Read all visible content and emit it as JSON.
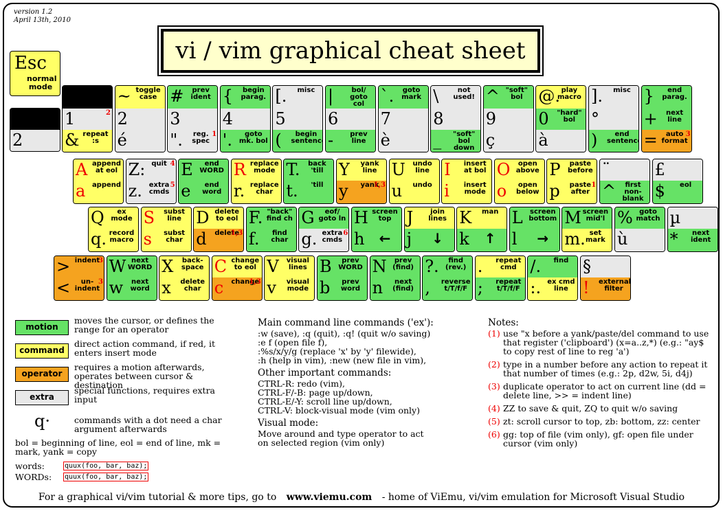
{
  "version": "version 1.2",
  "date": "April 13th, 2010",
  "title": "vi / vim graphical cheat sheet",
  "esc": {
    "key": "Esc",
    "desc": "normal mode"
  },
  "row1": [
    {
      "top": {
        "c": "",
        "d": "",
        "cl": "black"
      },
      "bot": {
        "c": "2",
        "d": "",
        "cl": "gray"
      }
    },
    {
      "top": {
        "c": "",
        "d": "",
        "cl": "black"
      },
      "bot": {
        "c": "1",
        "d": "",
        "cl": "gray",
        "s": "2"
      },
      "bot2": {
        "c": "&",
        "d": "repeat :s",
        "cl": "yellow"
      }
    },
    {
      "top": {
        "c": "~",
        "d": "toggle case",
        "cl": "yellow"
      },
      "bot": {
        "c": "2",
        "d": "",
        "cl": "gray"
      },
      "bot2": {
        "c": "é",
        "d": "",
        "cl": "gray"
      }
    },
    {
      "top": {
        "c": "#",
        "d": "prev ident",
        "cl": "green"
      },
      "bot": {
        "c": "3",
        "d": "",
        "cl": "gray"
      },
      "bot2": {
        "c": "\".",
        "d": "reg. spec",
        "cl": "gray",
        "s": "1"
      }
    },
    {
      "top": {
        "c": "{",
        "d": "begin parag.",
        "cl": "green"
      },
      "bot": {
        "c": "4",
        "d": "",
        "cl": "gray"
      },
      "bot2": {
        "c": "'.",
        "d": "goto mk. bol",
        "cl": "green"
      }
    },
    {
      "top": {
        "c": "[.",
        "d": "misc",
        "cl": "gray"
      },
      "bot": {
        "c": "5",
        "d": "",
        "cl": "gray"
      },
      "bot2": {
        "c": "(",
        "d": "begin sentence",
        "cl": "green"
      }
    },
    {
      "top": {
        "c": "|",
        "d": "bol/ goto col",
        "cl": "green"
      },
      "bot": {
        "c": "6",
        "d": "",
        "cl": "gray"
      },
      "bot2": {
        "c": "-",
        "d": "prev line",
        "cl": "green"
      }
    },
    {
      "top": {
        "c": "`.",
        "d": "goto mark",
        "cl": "green"
      },
      "bot": {
        "c": "7",
        "d": "",
        "cl": "gray"
      },
      "bot2": {
        "c": "è",
        "d": "",
        "cl": "gray"
      }
    },
    {
      "top": {
        "c": "\\",
        "d": "not used!",
        "cl": "gray"
      },
      "bot": {
        "c": "8",
        "d": "",
        "cl": "gray"
      },
      "bot2": {
        "c": "_",
        "d": "\"soft\" bol down",
        "cl": "green"
      }
    },
    {
      "top": {
        "c": "^",
        "d": "\"soft\" bol",
        "cl": "green"
      },
      "bot": {
        "c": "9",
        "d": "",
        "cl": "gray"
      },
      "bot2": {
        "c": "ç",
        "d": "",
        "cl": "gray"
      }
    },
    {
      "top": {
        "c": "@.",
        "d": "play macro",
        "cl": "yellow"
      },
      "bot": {
        "c": "0",
        "d": "\"hard\" bol",
        "cl": "green"
      },
      "bot2": {
        "c": "à",
        "d": "",
        "cl": "gray"
      }
    },
    {
      "top": {
        "c": "].",
        "d": "misc",
        "cl": "gray"
      },
      "bot": {
        "c": "°",
        "d": "",
        "cl": "gray"
      },
      "bot2": {
        "c": ")",
        "d": "end sentence",
        "cl": "green"
      }
    },
    {
      "top": {
        "c": "}",
        "d": "end parag.",
        "cl": "green"
      },
      "bot": {
        "c": "+",
        "d": "next line",
        "cl": "green"
      },
      "bot2": {
        "c": "=",
        "d": "auto format",
        "cl": "orange",
        "s": "3"
      }
    }
  ],
  "row2": [
    {
      "t": {
        "c": "A",
        "d": "append at eol",
        "cl": "yellow",
        "r": true
      },
      "b": {
        "c": "a",
        "d": "append",
        "cl": "yellow",
        "r": true
      }
    },
    {
      "t": {
        "c": "Z:",
        "d": "quit",
        "cl": "gray",
        "s": "4"
      },
      "b": {
        "c": "z.",
        "d": "extra cmds",
        "cl": "gray",
        "s": "5"
      }
    },
    {
      "t": {
        "c": "E",
        "d": "end WORD",
        "cl": "green"
      },
      "b": {
        "c": "e",
        "d": "end word",
        "cl": "green"
      }
    },
    {
      "t": {
        "c": "R",
        "d": "replace mode",
        "cl": "yellow",
        "r": true
      },
      "b": {
        "c": "r.",
        "d": "replace char",
        "cl": "yellow"
      }
    },
    {
      "t": {
        "c": "T.",
        "d": "back 'till",
        "cl": "green"
      },
      "b": {
        "c": "t.",
        "d": "'till",
        "cl": "green"
      }
    },
    {
      "t": {
        "c": "Y",
        "d": "yank line",
        "cl": "yellow"
      },
      "b": {
        "c": "y",
        "d": "yank",
        "cl": "orange",
        "s": "1,3"
      }
    },
    {
      "t": {
        "c": "U",
        "d": "undo line",
        "cl": "yellow"
      },
      "b": {
        "c": "u",
        "d": "undo",
        "cl": "yellow"
      }
    },
    {
      "t": {
        "c": "I",
        "d": "insert at bol",
        "cl": "yellow",
        "r": true
      },
      "b": {
        "c": "i",
        "d": "insert mode",
        "cl": "yellow",
        "r": true
      }
    },
    {
      "t": {
        "c": "O",
        "d": "open above",
        "cl": "yellow",
        "r": true
      },
      "b": {
        "c": "o",
        "d": "open below",
        "cl": "yellow",
        "r": true
      }
    },
    {
      "t": {
        "c": "P",
        "d": "paste before",
        "cl": "yellow"
      },
      "b": {
        "c": "p",
        "d": "paste after",
        "cl": "yellow",
        "s": "1"
      }
    },
    {
      "t": {
        "c": "¨",
        "d": "",
        "cl": "gray"
      },
      "b": {
        "c": "^",
        "d": "first non-blank",
        "cl": "green"
      }
    },
    {
      "t": {
        "c": "£",
        "d": "",
        "cl": "gray"
      },
      "b": {
        "c": "$",
        "d": "eol",
        "cl": "green"
      }
    }
  ],
  "row3": [
    {
      "t": {
        "c": "Q",
        "d": "ex mode",
        "cl": "yellow"
      },
      "b": {
        "c": "q.",
        "d": "record macro",
        "cl": "yellow"
      }
    },
    {
      "t": {
        "c": "S",
        "d": "subst line",
        "cl": "yellow",
        "r": true
      },
      "b": {
        "c": "s",
        "d": "subst char",
        "cl": "yellow",
        "r": true
      }
    },
    {
      "t": {
        "c": "D",
        "d": "delete to eol",
        "cl": "yellow"
      },
      "b": {
        "c": "d",
        "d": "delete",
        "cl": "orange",
        "s": "1,3"
      }
    },
    {
      "t": {
        "c": "F.",
        "d": "\"back\" find ch",
        "cl": "green"
      },
      "b": {
        "c": "f.",
        "d": "find char",
        "cl": "green"
      }
    },
    {
      "t": {
        "c": "G",
        "d": "eof/ goto ln",
        "cl": "green"
      },
      "b": {
        "c": "g.",
        "d": "extra cmds",
        "cl": "gray",
        "s": "6"
      }
    },
    {
      "t": {
        "c": "H",
        "d": "screen top",
        "cl": "green"
      },
      "b": {
        "c": "h",
        "d": "←",
        "cl": "green"
      }
    },
    {
      "t": {
        "c": "J",
        "d": "join lines",
        "cl": "yellow"
      },
      "b": {
        "c": "j",
        "d": "↓",
        "cl": "green"
      }
    },
    {
      "t": {
        "c": "K",
        "d": "man",
        "cl": "yellow"
      },
      "b": {
        "c": "k",
        "d": "↑",
        "cl": "green"
      }
    },
    {
      "t": {
        "c": "L",
        "d": "screen bottom",
        "cl": "green"
      },
      "b": {
        "c": "l",
        "d": "→",
        "cl": "green"
      }
    },
    {
      "t": {
        "c": "M",
        "d": "screen mid'l",
        "cl": "green"
      },
      "b": {
        "c": "m.",
        "d": "set mark",
        "cl": "yellow"
      }
    },
    {
      "t": {
        "c": "%",
        "d": "goto match",
        "cl": "green"
      },
      "b": {
        "c": "ù",
        "d": "",
        "cl": "gray"
      }
    },
    {
      "t": {
        "c": "µ",
        "d": "",
        "cl": "gray"
      },
      "b": {
        "c": "*",
        "d": "next ident",
        "cl": "green"
      }
    }
  ],
  "row4": [
    {
      "t": {
        "c": ">",
        "d": "indent",
        "cl": "orange",
        "s": "3"
      },
      "b": {
        "c": "<",
        "d": "un- indent",
        "cl": "orange",
        "s": "3"
      }
    },
    {
      "t": {
        "c": "W",
        "d": "next WORD",
        "cl": "green"
      },
      "b": {
        "c": "w",
        "d": "next word",
        "cl": "green"
      }
    },
    {
      "t": {
        "c": "X",
        "d": "back- space",
        "cl": "yellow"
      },
      "b": {
        "c": "x",
        "d": "delete char",
        "cl": "yellow"
      }
    },
    {
      "t": {
        "c": "C",
        "d": "change to eol",
        "cl": "yellow",
        "r": true
      },
      "b": {
        "c": "c",
        "d": "change",
        "cl": "orange",
        "r": true,
        "s": "1,3"
      }
    },
    {
      "t": {
        "c": "V",
        "d": "visual lines",
        "cl": "yellow"
      },
      "b": {
        "c": "v",
        "d": "visual mode",
        "cl": "yellow"
      }
    },
    {
      "t": {
        "c": "B",
        "d": "prev WORD",
        "cl": "green"
      },
      "b": {
        "c": "b",
        "d": "prev word",
        "cl": "green"
      }
    },
    {
      "t": {
        "c": "N",
        "d": "prev (find)",
        "cl": "green"
      },
      "b": {
        "c": "n",
        "d": "next (find)",
        "cl": "green"
      }
    },
    {
      "t": {
        "c": "?.",
        "d": "find (rev.)",
        "cl": "green"
      },
      "b": {
        "c": ",",
        "d": "reverse t/T/f/F",
        "cl": "green"
      }
    },
    {
      "t": {
        "c": ".",
        "d": "repeat cmd",
        "cl": "yellow"
      },
      "b": {
        "c": ";",
        "d": "repeat t/T/f/F",
        "cl": "green"
      }
    },
    {
      "t": {
        "c": "/.",
        "d": "find",
        "cl": "green"
      },
      "b": {
        "c": ":.",
        "d": "ex cmd line",
        "cl": "yellow"
      }
    },
    {
      "t": {
        "c": "§",
        "d": "",
        "cl": "gray"
      },
      "b": {
        "c": "!",
        "d": "external filter",
        "cl": "orange",
        "r": true
      }
    }
  ],
  "legend": [
    {
      "label": "motion",
      "text": "moves the cursor, or defines the range for an operator",
      "cl": "green"
    },
    {
      "label": "command",
      "text": "direct action command, if red, it enters insert mode",
      "cl": "yellow"
    },
    {
      "label": "operator",
      "text": "requires a motion afterwards, operates between cursor & destination",
      "cl": "orange"
    },
    {
      "label": "extra",
      "text": "special functions, requires extra input",
      "cl": "gray"
    }
  ],
  "dot": {
    "key": "q·",
    "text": "commands with a dot need a char argument afterwards"
  },
  "bol": "bol = beginning of line, eol = end of line, mk = mark, yank = copy",
  "words": {
    "l1": "words:",
    "l2": "WORDs:",
    "ex": "quux(foo, bar, baz);"
  },
  "ex": {
    "title": "Main command line commands ('ex'):",
    "lines": [
      ":w (save), :q (quit), :q! (quit w/o saving)",
      ":e f (open file f),",
      ":%s/x/y/g (replace 'x' by 'y' filewide),",
      ":h (help in vim), :new (new file in vim),"
    ]
  },
  "other": {
    "title": "Other important commands:",
    "lines": [
      "CTRL-R: redo (vim),",
      "CTRL-F/-B: page up/down,",
      "CTRL-E/-Y: scroll line up/down,",
      "CTRL-V: block-visual mode (vim only)"
    ]
  },
  "visual": {
    "title": "Visual mode:",
    "lines": [
      "Move around and type operator to act",
      "on selected region (vim only)"
    ]
  },
  "notes": {
    "title": "Notes:",
    "items": [
      {
        "n": "(1)",
        "t": "use \"x before a yank/paste/del command to use that register ('clipboard') (x=a..z,*) (e.g.: \"ay$ to copy rest of line to reg 'a')"
      },
      {
        "n": "(2)",
        "t": "type in a number before any action to repeat it that number of times (e.g.: 2p, d2w, 5i, d4j)"
      },
      {
        "n": "(3)",
        "t": "duplicate operator to act on current line (dd = delete line, >> = indent line)"
      },
      {
        "n": "(4)",
        "t": "ZZ to save & quit, ZQ to quit w/o saving"
      },
      {
        "n": "(5)",
        "t": "zt: scroll cursor to top, zb: bottom, zz: center"
      },
      {
        "n": "(6)",
        "t": "gg: top of file (vim only), gf: open file under cursor (vim only)"
      }
    ]
  },
  "footer": {
    "pre": "For a graphical vi/vim tutorial & more tips, go to",
    "url": "www.viemu.com",
    "post": "- home of ViEmu, vi/vim emulation for Microsoft Visual Studio"
  }
}
